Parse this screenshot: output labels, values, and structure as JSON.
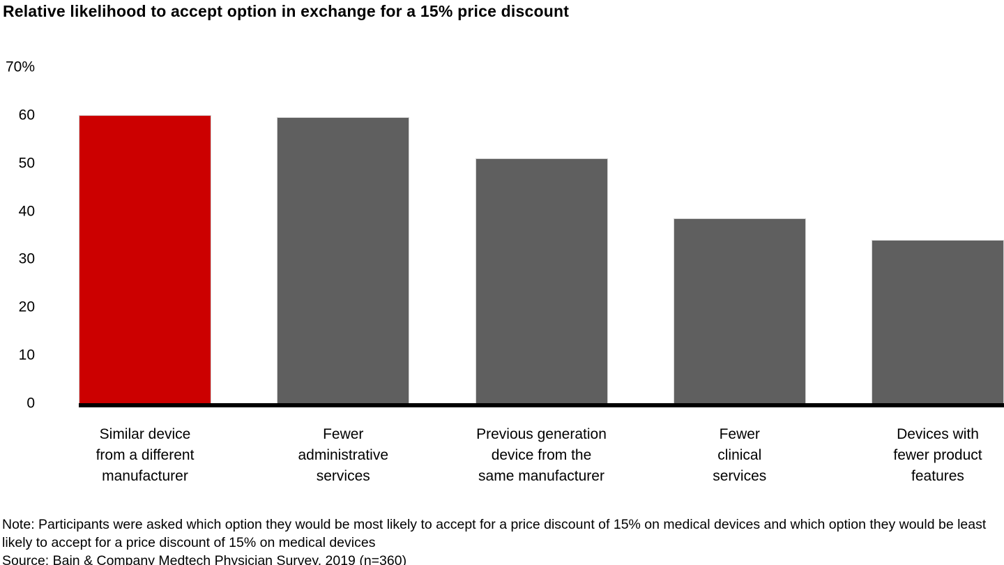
{
  "title": "Relative likelihood to accept option in exchange for a 15% price discount",
  "note": "Note: Participants were asked which option they would be most likely to accept for a price discount of 15% on medical devices and which option they would be least likely to accept for a price discount of 15% on medical devices",
  "source": "Source: Bain & Company Medtech Physician Survey, 2019 (n=360)",
  "colors": {
    "highlight_bar": "#cc0000",
    "default_bar": "#5f5f5f",
    "bar_edge": "#d3d3d3",
    "axis": "#000000"
  },
  "chart_data": {
    "type": "bar",
    "title": "Relative likelihood to accept option in exchange for a 15% price discount",
    "categories": [
      "Similar device from a different manufacturer",
      "Fewer administrative services",
      "Previous generation device from the same manufacturer",
      "Fewer clinical services",
      "Devices with fewer product features"
    ],
    "category_lines": [
      [
        "Similar device",
        "from a different",
        "manufacturer"
      ],
      [
        "Fewer",
        "administrative",
        "services"
      ],
      [
        "Previous generation",
        "device from the",
        "same manufacturer"
      ],
      [
        "Fewer",
        "clinical",
        "services"
      ],
      [
        "Devices with",
        "fewer product",
        "features"
      ]
    ],
    "values": [
      60,
      59.5,
      51,
      38.5,
      34
    ],
    "highlight_index": 0,
    "xlabel": "",
    "ylabel": "",
    "ylim": [
      0,
      70
    ],
    "yticks": [
      {
        "value": 0,
        "label": "0"
      },
      {
        "value": 10,
        "label": "10"
      },
      {
        "value": 20,
        "label": "20"
      },
      {
        "value": 30,
        "label": "30"
      },
      {
        "value": 40,
        "label": "40"
      },
      {
        "value": 50,
        "label": "50"
      },
      {
        "value": 60,
        "label": "60"
      },
      {
        "value": 70,
        "label": "70%"
      }
    ],
    "grid": false,
    "legend": false
  }
}
